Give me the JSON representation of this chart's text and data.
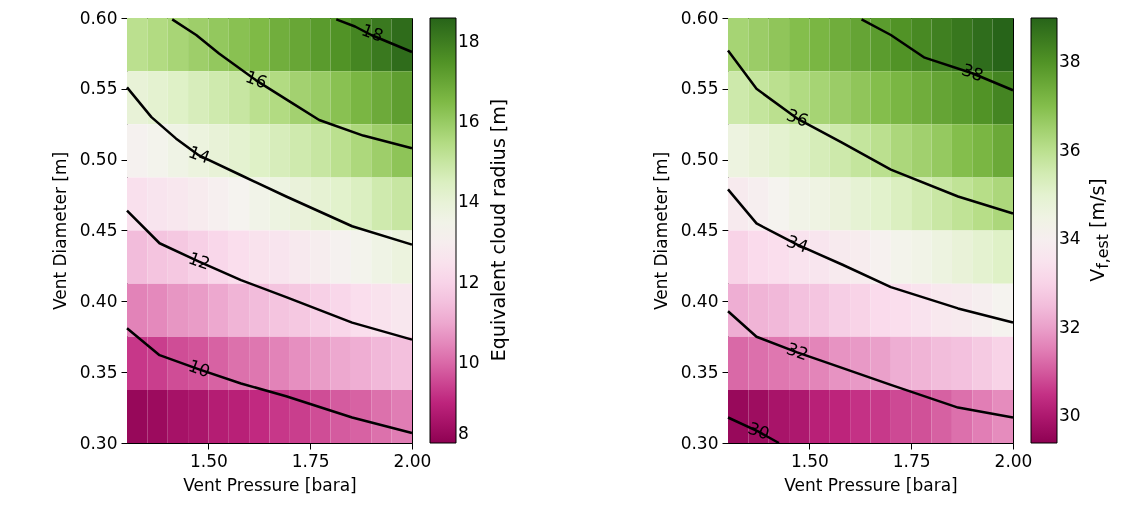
{
  "chart_data": [
    {
      "type": "heatmap",
      "xlabel": "Vent Pressure [bara]",
      "ylabel": "Vent Diameter [m]",
      "clabel": "Equivalent cloud radius [m]",
      "cells": [
        [
          15.3,
          15.5,
          15.7,
          15.9,
          16.1,
          16.3,
          16.5,
          16.8,
          17.0,
          17.3,
          17.5,
          17.8,
          18.1,
          18.4
        ],
        [
          14.0,
          14.2,
          14.4,
          14.6,
          14.8,
          15.0,
          15.3,
          15.5,
          15.8,
          16.0,
          16.3,
          16.6,
          16.9,
          17.2
        ],
        [
          13.2,
          13.4,
          13.6,
          13.8,
          14.0,
          14.2,
          14.4,
          14.6,
          14.8,
          15.0,
          15.3,
          15.6,
          15.9,
          16.2
        ],
        [
          12.4,
          12.6,
          12.7,
          12.9,
          13.1,
          13.3,
          13.5,
          13.7,
          13.9,
          14.1,
          14.3,
          14.5,
          14.8,
          15.0
        ],
        [
          11.4,
          11.6,
          11.7,
          11.9,
          12.1,
          12.3,
          12.5,
          12.6,
          12.8,
          13.0,
          13.2,
          13.4,
          13.6,
          13.8
        ],
        [
          10.4,
          10.5,
          10.7,
          10.8,
          11.0,
          11.2,
          11.4,
          11.6,
          11.7,
          11.9,
          12.1,
          12.3,
          12.5,
          12.7
        ],
        [
          9.3,
          9.4,
          9.6,
          9.7,
          9.9,
          10.1,
          10.2,
          10.4,
          10.6,
          10.8,
          11.0,
          11.1,
          11.3,
          11.5
        ],
        [
          8.2,
          8.3,
          8.5,
          8.6,
          8.8,
          8.9,
          9.1,
          9.3,
          9.4,
          9.6,
          9.8,
          9.9,
          10.1,
          10.3
        ]
      ],
      "clim": [
        8,
        18.6
      ],
      "cticks": [
        8,
        10,
        12,
        14,
        16,
        18
      ],
      "xlim": [
        1.3,
        2.0
      ],
      "xticks": [
        {
          "value": 1.5,
          "label": "1.50"
        },
        {
          "value": 1.75,
          "label": "1.75"
        },
        {
          "value": 2.0,
          "label": "2.00"
        }
      ],
      "ylim": [
        0.3,
        0.6
      ],
      "yticks": [
        {
          "value": 0.3,
          "label": "0.30"
        },
        {
          "value": 0.35,
          "label": "0.35"
        },
        {
          "value": 0.4,
          "label": "0.40"
        },
        {
          "value": 0.45,
          "label": "0.45"
        },
        {
          "value": 0.5,
          "label": "0.50"
        },
        {
          "value": 0.55,
          "label": "0.55"
        },
        {
          "value": 0.6,
          "label": "0.60"
        }
      ],
      "series": [
        {
          "type": "line",
          "color": "#000000",
          "x": [
            1.814,
            1.86,
            1.9,
            1.95,
            2.0
          ],
          "values": [
            0.599,
            0.594,
            0.588,
            0.582,
            0.576
          ]
        },
        {
          "type": "line",
          "color": "#000000",
          "x": [
            1.411,
            1.47,
            1.526,
            1.617,
            1.7,
            1.772,
            1.88,
            2.0
          ],
          "values": [
            0.599,
            0.588,
            0.575,
            0.556,
            0.541,
            0.528,
            0.517,
            0.508
          ]
        },
        {
          "type": "line",
          "color": "#000000",
          "x": [
            1.3,
            1.36,
            1.42,
            1.477,
            1.58,
            1.691,
            1.853,
            2.0
          ],
          "values": [
            0.551,
            0.53,
            0.515,
            0.503,
            0.489,
            0.474,
            0.453,
            0.44
          ]
        },
        {
          "type": "line",
          "color": "#000000",
          "x": [
            1.3,
            1.38,
            1.477,
            1.58,
            1.691,
            1.853,
            2.0
          ],
          "values": [
            0.464,
            0.441,
            0.428,
            0.415,
            0.403,
            0.385,
            0.373
          ]
        },
        {
          "type": "line",
          "color": "#000000",
          "x": [
            1.3,
            1.38,
            1.477,
            1.58,
            1.691,
            1.853,
            2.0
          ],
          "values": [
            0.381,
            0.362,
            0.352,
            0.342,
            0.333,
            0.318,
            0.307
          ]
        }
      ],
      "annotations": [
        {
          "text": "18",
          "x": 1.902,
          "y": 0.589
        },
        {
          "text": "16",
          "x": 1.617,
          "y": 0.556
        },
        {
          "text": "14",
          "x": 1.477,
          "y": 0.503
        },
        {
          "text": "12",
          "x": 1.477,
          "y": 0.428
        },
        {
          "text": "10",
          "x": 1.477,
          "y": 0.352
        }
      ]
    },
    {
      "type": "heatmap",
      "xlabel": "Vent Pressure [bara]",
      "ylabel": "Vent Diameter [m]",
      "clabel": "V$_{f,est}$ [m/s]",
      "cells": [
        [
          36.4,
          36.6,
          36.8,
          37.0,
          37.2,
          37.4,
          37.6,
          37.8,
          38.0,
          38.2,
          38.4,
          38.6,
          38.8,
          39.0
        ],
        [
          35.6,
          35.8,
          36.0,
          36.2,
          36.4,
          36.6,
          36.8,
          37.0,
          37.2,
          37.4,
          37.6,
          37.8,
          38.0,
          38.3
        ],
        [
          34.6,
          34.8,
          35.0,
          35.2,
          35.4,
          35.6,
          35.8,
          36.0,
          36.3,
          36.5,
          36.7,
          37.0,
          37.2,
          37.5
        ],
        [
          33.8,
          34.0,
          34.2,
          34.4,
          34.5,
          34.7,
          34.9,
          35.1,
          35.3,
          35.5,
          35.7,
          35.9,
          36.1,
          36.3
        ],
        [
          33.0,
          33.2,
          33.3,
          33.5,
          33.6,
          33.8,
          33.9,
          34.1,
          34.3,
          34.4,
          34.6,
          34.8,
          35.0,
          35.2
        ],
        [
          32.2,
          32.3,
          32.4,
          32.6,
          32.7,
          32.9,
          33.0,
          33.2,
          33.3,
          33.5,
          33.7,
          33.8,
          34.0,
          34.2
        ],
        [
          31.2,
          31.3,
          31.4,
          31.5,
          31.6,
          31.8,
          31.9,
          32.0,
          32.2,
          32.3,
          32.5,
          32.6,
          32.8,
          33.0
        ],
        [
          29.6,
          29.7,
          29.9,
          30.0,
          30.2,
          30.3,
          30.5,
          30.6,
          30.8,
          30.9,
          31.1,
          31.3,
          31.5,
          31.7
        ]
      ],
      "clim": [
        29.4,
        39.0
      ],
      "cticks": [
        30,
        32,
        34,
        36,
        38
      ],
      "xlim": [
        1.3,
        2.0
      ],
      "xticks": [
        {
          "value": 1.5,
          "label": "1.50"
        },
        {
          "value": 1.75,
          "label": "1.75"
        },
        {
          "value": 2.0,
          "label": "2.00"
        }
      ],
      "ylim": [
        0.3,
        0.6
      ],
      "yticks": [
        {
          "value": 0.3,
          "label": "0.30"
        },
        {
          "value": 0.35,
          "label": "0.35"
        },
        {
          "value": 0.4,
          "label": "0.40"
        },
        {
          "value": 0.45,
          "label": "0.45"
        },
        {
          "value": 0.5,
          "label": "0.50"
        },
        {
          "value": 0.55,
          "label": "0.55"
        },
        {
          "value": 0.6,
          "label": "0.60"
        }
      ],
      "series": [
        {
          "type": "line",
          "color": "#000000",
          "x": [
            1.628,
            1.7,
            1.783,
            1.9,
            2.0
          ],
          "values": [
            0.599,
            0.588,
            0.572,
            0.561,
            0.549
          ]
        },
        {
          "type": "line",
          "color": "#000000",
          "x": [
            1.3,
            1.37,
            1.47,
            1.58,
            1.7,
            1.865,
            2.0
          ],
          "values": [
            0.577,
            0.55,
            0.529,
            0.512,
            0.493,
            0.474,
            0.462
          ]
        },
        {
          "type": "line",
          "color": "#000000",
          "x": [
            1.3,
            1.37,
            1.47,
            1.58,
            1.7,
            1.865,
            2.0
          ],
          "values": [
            0.479,
            0.455,
            0.44,
            0.426,
            0.41,
            0.395,
            0.385
          ]
        },
        {
          "type": "line",
          "color": "#000000",
          "x": [
            1.3,
            1.37,
            1.47,
            1.58,
            1.7,
            1.865,
            2.0
          ],
          "values": [
            0.393,
            0.375,
            0.364,
            0.353,
            0.341,
            0.325,
            0.318
          ]
        },
        {
          "type": "line",
          "color": "#000000",
          "x": [
            1.3,
            1.375,
            1.425
          ],
          "values": [
            0.318,
            0.308,
            0.3
          ]
        }
      ],
      "annotations": [
        {
          "text": "38",
          "x": 1.9,
          "y": 0.561
        },
        {
          "text": "36",
          "x": 1.47,
          "y": 0.529
        },
        {
          "text": "34",
          "x": 1.47,
          "y": 0.44
        },
        {
          "text": "32",
          "x": 1.47,
          "y": 0.364
        },
        {
          "text": "30",
          "x": 1.375,
          "y": 0.308
        }
      ]
    }
  ]
}
